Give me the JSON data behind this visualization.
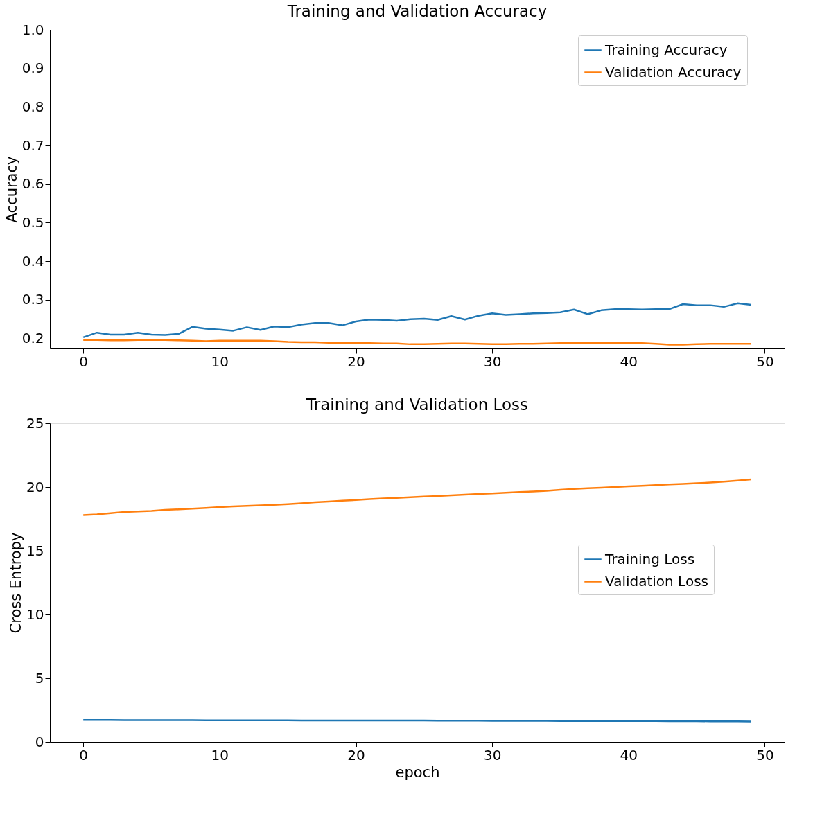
{
  "chart_data": [
    {
      "type": "line",
      "title": "Training and Validation Accuracy",
      "ylabel": "Accuracy",
      "x": [
        0,
        1,
        2,
        3,
        4,
        5,
        6,
        7,
        8,
        9,
        10,
        11,
        12,
        13,
        14,
        15,
        16,
        17,
        18,
        19,
        20,
        21,
        22,
        23,
        24,
        25,
        26,
        27,
        28,
        29,
        30,
        31,
        32,
        33,
        34,
        35,
        36,
        37,
        38,
        39,
        40,
        41,
        42,
        43,
        44,
        45,
        46,
        47,
        48,
        49
      ],
      "series": [
        {
          "name": "Training Accuracy",
          "color": "#1f77b4",
          "values": [
            0.203,
            0.215,
            0.21,
            0.21,
            0.215,
            0.21,
            0.209,
            0.212,
            0.23,
            0.225,
            0.223,
            0.22,
            0.229,
            0.222,
            0.231,
            0.229,
            0.236,
            0.24,
            0.24,
            0.234,
            0.244,
            0.249,
            0.248,
            0.246,
            0.25,
            0.251,
            0.248,
            0.258,
            0.249,
            0.259,
            0.265,
            0.261,
            0.263,
            0.265,
            0.266,
            0.268,
            0.275,
            0.263,
            0.273,
            0.276,
            0.276,
            0.275,
            0.276,
            0.276,
            0.289,
            0.286,
            0.286,
            0.282,
            0.291,
            0.287
          ]
        },
        {
          "name": "Validation Accuracy",
          "color": "#ff7f0e",
          "values": [
            0.196,
            0.196,
            0.195,
            0.195,
            0.196,
            0.196,
            0.196,
            0.195,
            0.194,
            0.193,
            0.194,
            0.194,
            0.194,
            0.194,
            0.193,
            0.191,
            0.19,
            0.19,
            0.189,
            0.188,
            0.188,
            0.188,
            0.187,
            0.187,
            0.185,
            0.185,
            0.186,
            0.187,
            0.187,
            0.186,
            0.185,
            0.185,
            0.186,
            0.186,
            0.187,
            0.188,
            0.189,
            0.189,
            0.188,
            0.188,
            0.188,
            0.188,
            0.186,
            0.184,
            0.184,
            0.185,
            0.186,
            0.186,
            0.186,
            0.186
          ]
        }
      ],
      "xlim": [
        -2.45,
        51.45
      ],
      "xticks": [
        0,
        10,
        20,
        30,
        40,
        50
      ],
      "ylim": [
        0.174,
        1.0
      ],
      "yticks": [
        0.2,
        0.3,
        0.4,
        0.5,
        0.6,
        0.7,
        0.8,
        0.9,
        {
          "value": 1,
          "label": "1.0"
        }
      ],
      "legend": "top right"
    },
    {
      "type": "line",
      "title": "Training and Validation Loss",
      "xlabel": "epoch",
      "ylabel": "Cross Entropy",
      "x": [
        0,
        1,
        2,
        3,
        4,
        5,
        6,
        7,
        8,
        9,
        10,
        11,
        12,
        13,
        14,
        15,
        16,
        17,
        18,
        19,
        20,
        21,
        22,
        23,
        24,
        25,
        26,
        27,
        28,
        29,
        30,
        31,
        32,
        33,
        34,
        35,
        36,
        37,
        38,
        39,
        40,
        41,
        42,
        43,
        44,
        45,
        46,
        47,
        48,
        49
      ],
      "series": [
        {
          "name": "Training Loss",
          "color": "#1f77b4",
          "values": [
            1.72,
            1.72,
            1.72,
            1.71,
            1.71,
            1.71,
            1.71,
            1.71,
            1.71,
            1.7,
            1.7,
            1.7,
            1.7,
            1.7,
            1.7,
            1.7,
            1.69,
            1.69,
            1.69,
            1.69,
            1.69,
            1.68,
            1.68,
            1.68,
            1.68,
            1.68,
            1.67,
            1.67,
            1.67,
            1.67,
            1.66,
            1.66,
            1.66,
            1.66,
            1.66,
            1.65,
            1.65,
            1.65,
            1.65,
            1.64,
            1.64,
            1.64,
            1.64,
            1.63,
            1.63,
            1.63,
            1.62,
            1.62,
            1.62,
            1.61
          ]
        },
        {
          "name": "Validation Loss",
          "color": "#ff7f0e",
          "values": [
            17.8,
            17.85,
            17.95,
            18.05,
            18.08,
            18.12,
            18.2,
            18.25,
            18.3,
            18.36,
            18.42,
            18.48,
            18.52,
            18.56,
            18.6,
            18.66,
            18.72,
            18.8,
            18.86,
            18.92,
            18.98,
            19.05,
            19.1,
            19.15,
            19.2,
            19.25,
            19.3,
            19.35,
            19.4,
            19.45,
            19.5,
            19.55,
            19.6,
            19.65,
            19.7,
            19.78,
            19.85,
            19.9,
            19.95,
            20.0,
            20.05,
            20.1,
            20.15,
            20.2,
            20.25,
            20.3,
            20.35,
            20.42,
            20.5,
            20.6
          ]
        }
      ],
      "xlim": [
        -2.45,
        51.45
      ],
      "xticks": [
        0,
        10,
        20,
        30,
        40,
        50
      ],
      "ylim": [
        0,
        25
      ],
      "yticks": [
        0,
        5,
        10,
        15,
        20,
        25
      ],
      "legend": "right"
    }
  ]
}
